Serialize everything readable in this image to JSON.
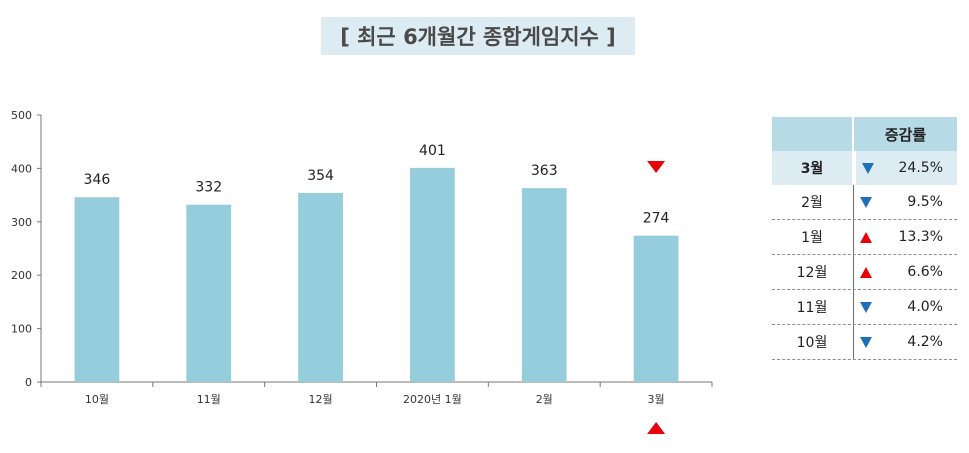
{
  "title": "[ 최근 6개월간 종합게임지수 ]",
  "colors": {
    "bar": "#96cddd",
    "up": "#e8000b",
    "down": "#1f6fb8",
    "header": "#b6dbe7",
    "highlight": "#dcecf2"
  },
  "chart_data": {
    "type": "bar",
    "categories": [
      "10월",
      "11월",
      "12월",
      "2020년 1월",
      "2월",
      "3월"
    ],
    "values": [
      346,
      332,
      354,
      401,
      363,
      274
    ],
    "ylim": [
      0,
      500
    ],
    "yticks": [
      0,
      100,
      200,
      300,
      400,
      500
    ],
    "title": "",
    "xlabel": "",
    "ylabel": "",
    "grid": false,
    "markers": [
      {
        "category": "3월",
        "icon": "down-triangle-icon",
        "position": "above"
      },
      {
        "category": "3월",
        "icon": "up-triangle-icon",
        "position": "below"
      }
    ]
  },
  "table": {
    "header": "증감률",
    "rows": [
      {
        "month": "3월",
        "dir": "down",
        "value": "24.5%"
      },
      {
        "month": "2월",
        "dir": "down",
        "value": "9.5%"
      },
      {
        "month": "1월",
        "dir": "up",
        "value": "13.3%"
      },
      {
        "month": "12월",
        "dir": "up",
        "value": "6.6%"
      },
      {
        "month": "11월",
        "dir": "down",
        "value": "4.0%"
      },
      {
        "month": "10월",
        "dir": "down",
        "value": "4.2%"
      }
    ]
  }
}
